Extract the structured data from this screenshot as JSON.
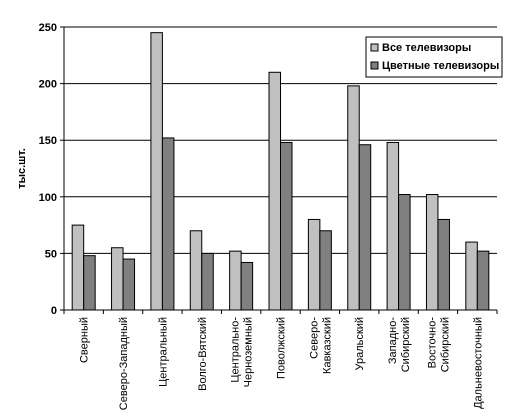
{
  "chart_data": {
    "type": "bar",
    "ylabel": "тыс.шт.",
    "ylim": [
      0,
      250
    ],
    "yticks": [
      0,
      50,
      100,
      150,
      200,
      250
    ],
    "grid": true,
    "legend_position": "top-right",
    "categories": [
      [
        "Сверный"
      ],
      [
        "Северо-Западный"
      ],
      [
        "Центральный"
      ],
      [
        "Волго-Вятский"
      ],
      [
        "Центрально-",
        "Черноземный"
      ],
      [
        "Поволжский"
      ],
      [
        "Северо-",
        "Кавказский"
      ],
      [
        "Уральский"
      ],
      [
        "Западно-",
        "Сибирский"
      ],
      [
        "Восточно-",
        "Сибирский"
      ],
      [
        "Дальневосточный"
      ]
    ],
    "series": [
      {
        "name": "Все телевизоры",
        "color": "#c0c0c0",
        "values": [
          75,
          55,
          245,
          70,
          52,
          210,
          80,
          198,
          148,
          102,
          60
        ]
      },
      {
        "name": "Цветные телевизоры",
        "color": "#808080",
        "values": [
          48,
          45,
          152,
          50,
          42,
          148,
          70,
          146,
          102,
          80,
          52
        ]
      }
    ]
  }
}
